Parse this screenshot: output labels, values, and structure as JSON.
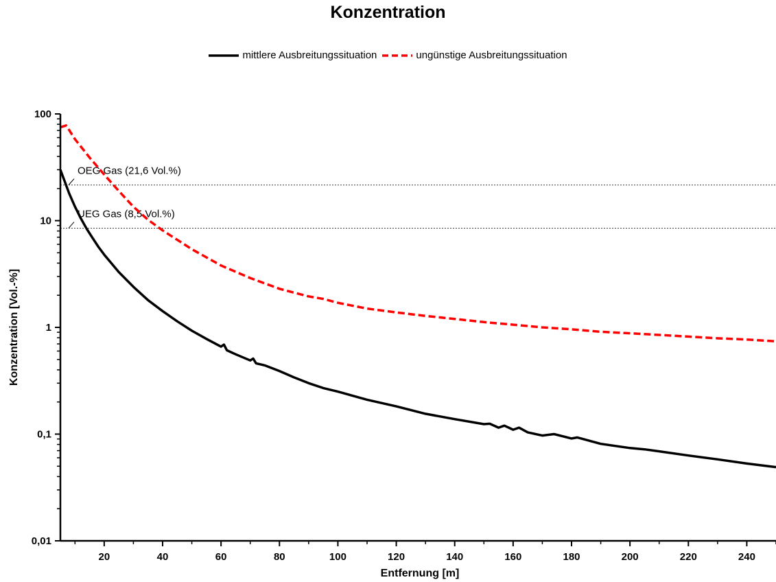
{
  "chart_data": {
    "type": "line",
    "title": "Konzentration",
    "xlabel": "Entfernung [m]",
    "ylabel": "Konzentration [Vol.-%]",
    "xlim": [
      5,
      250
    ],
    "ylim": [
      0.01,
      100
    ],
    "yscale": "log",
    "x_ticks": [
      20,
      40,
      60,
      80,
      100,
      120,
      140,
      160,
      180,
      200,
      220,
      240
    ],
    "x_tick_labels": [
      "20",
      "40",
      "60",
      "80",
      "100",
      "120",
      "140",
      "160",
      "180",
      "200",
      "220",
      "240"
    ],
    "y_ticks": [
      0.01,
      0.1,
      1,
      10,
      100
    ],
    "y_tick_labels": [
      "0,01",
      "0,1",
      "1",
      "10",
      "100"
    ],
    "legend_position": "top-center",
    "grid": false,
    "series": [
      {
        "name": "mittlere Ausbreitungssituation",
        "color": "#000000",
        "style": "solid",
        "x": [
          5,
          8,
          10,
          12,
          14,
          16,
          18,
          20,
          25,
          30,
          35,
          40,
          45,
          50,
          55,
          60,
          61,
          62,
          65,
          70,
          71,
          72,
          75,
          80,
          85,
          90,
          95,
          100,
          110,
          120,
          130,
          140,
          150,
          152,
          155,
          157,
          160,
          162,
          165,
          170,
          174,
          180,
          182,
          190,
          200,
          205,
          210,
          220,
          230,
          240,
          250
        ],
        "y": [
          30,
          18,
          13.5,
          10.5,
          8.4,
          6.9,
          5.7,
          4.8,
          3.3,
          2.4,
          1.8,
          1.42,
          1.14,
          0.93,
          0.78,
          0.66,
          0.69,
          0.61,
          0.56,
          0.49,
          0.51,
          0.46,
          0.44,
          0.39,
          0.34,
          0.3,
          0.27,
          0.25,
          0.21,
          0.182,
          0.155,
          0.138,
          0.124,
          0.125,
          0.115,
          0.12,
          0.11,
          0.115,
          0.104,
          0.097,
          0.1,
          0.091,
          0.093,
          0.081,
          0.074,
          0.072,
          0.069,
          0.063,
          0.058,
          0.053,
          0.049
        ]
      },
      {
        "name": "ungünstige Ausbreitungssituation",
        "color": "#ff0000",
        "style": "dashed",
        "x": [
          5,
          7,
          10,
          15,
          20,
          25,
          30,
          35,
          40,
          50,
          60,
          70,
          80,
          90,
          95,
          100,
          110,
          120,
          130,
          140,
          150,
          160,
          170,
          180,
          190,
          200,
          210,
          220,
          230,
          240,
          250
        ],
        "y": [
          75,
          78,
          58,
          39,
          27,
          19,
          13.5,
          10.2,
          8.1,
          5.4,
          3.8,
          2.9,
          2.3,
          1.95,
          1.85,
          1.7,
          1.5,
          1.38,
          1.28,
          1.2,
          1.12,
          1.06,
          1.0,
          0.96,
          0.91,
          0.88,
          0.85,
          0.82,
          0.79,
          0.77,
          0.74
        ]
      }
    ],
    "reference_lines": [
      {
        "label": "OEG Gas (21,6 Vol.%)",
        "y": 21.6
      },
      {
        "label": "UEG Gas (8,5 Vol.%)",
        "y": 8.5
      }
    ]
  }
}
